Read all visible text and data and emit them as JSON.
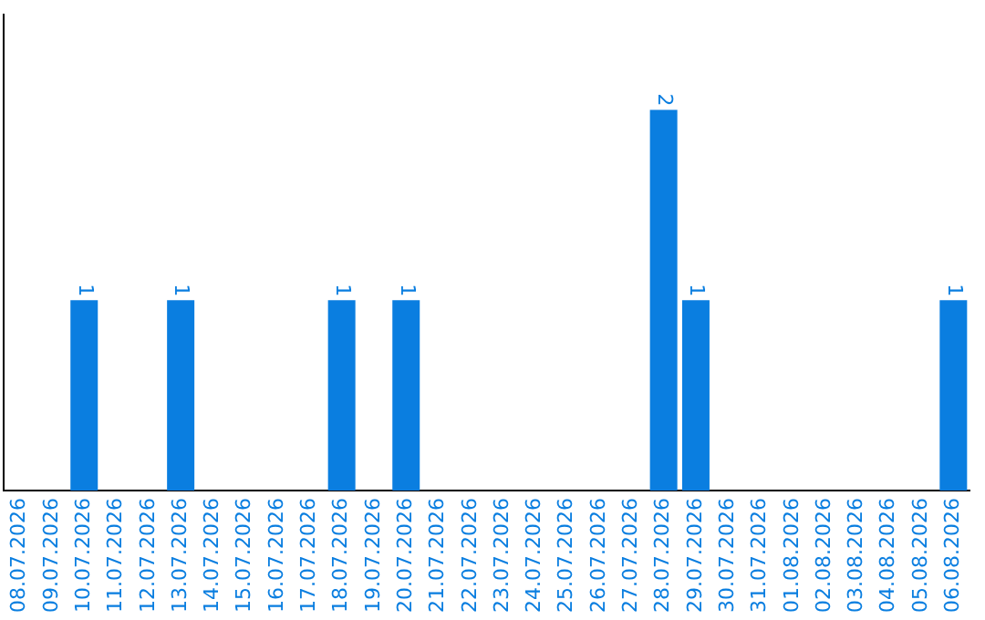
{
  "chart_data": {
    "type": "bar",
    "categories": [
      "08.07.2026",
      "09.07.2026",
      "10.07.2026",
      "11.07.2026",
      "12.07.2026",
      "13.07.2026",
      "14.07.2026",
      "15.07.2026",
      "16.07.2026",
      "17.07.2026",
      "18.07.2026",
      "19.07.2026",
      "20.07.2026",
      "21.07.2026",
      "22.07.2026",
      "23.07.2026",
      "24.07.2026",
      "25.07.2026",
      "26.07.2026",
      "27.07.2026",
      "28.07.2026",
      "29.07.2026",
      "30.07.2026",
      "31.07.2026",
      "01.08.2026",
      "02.08.2026",
      "03.08.2026",
      "04.08.2026",
      "05.08.2026",
      "06.08.2026"
    ],
    "values": [
      0,
      0,
      1,
      0,
      0,
      1,
      0,
      0,
      0,
      0,
      1,
      0,
      1,
      0,
      0,
      0,
      0,
      0,
      0,
      0,
      2,
      1,
      0,
      0,
      0,
      0,
      0,
      0,
      0,
      1
    ],
    "value_labels": [
      null,
      null,
      "1",
      null,
      null,
      "1",
      null,
      null,
      null,
      null,
      "1",
      null,
      "1",
      null,
      null,
      null,
      null,
      null,
      null,
      null,
      "2",
      "1",
      null,
      null,
      null,
      null,
      null,
      null,
      null,
      "1"
    ],
    "color": "#0a7ee0",
    "grid": false,
    "legend": false,
    "tick_labels": "x"
  }
}
